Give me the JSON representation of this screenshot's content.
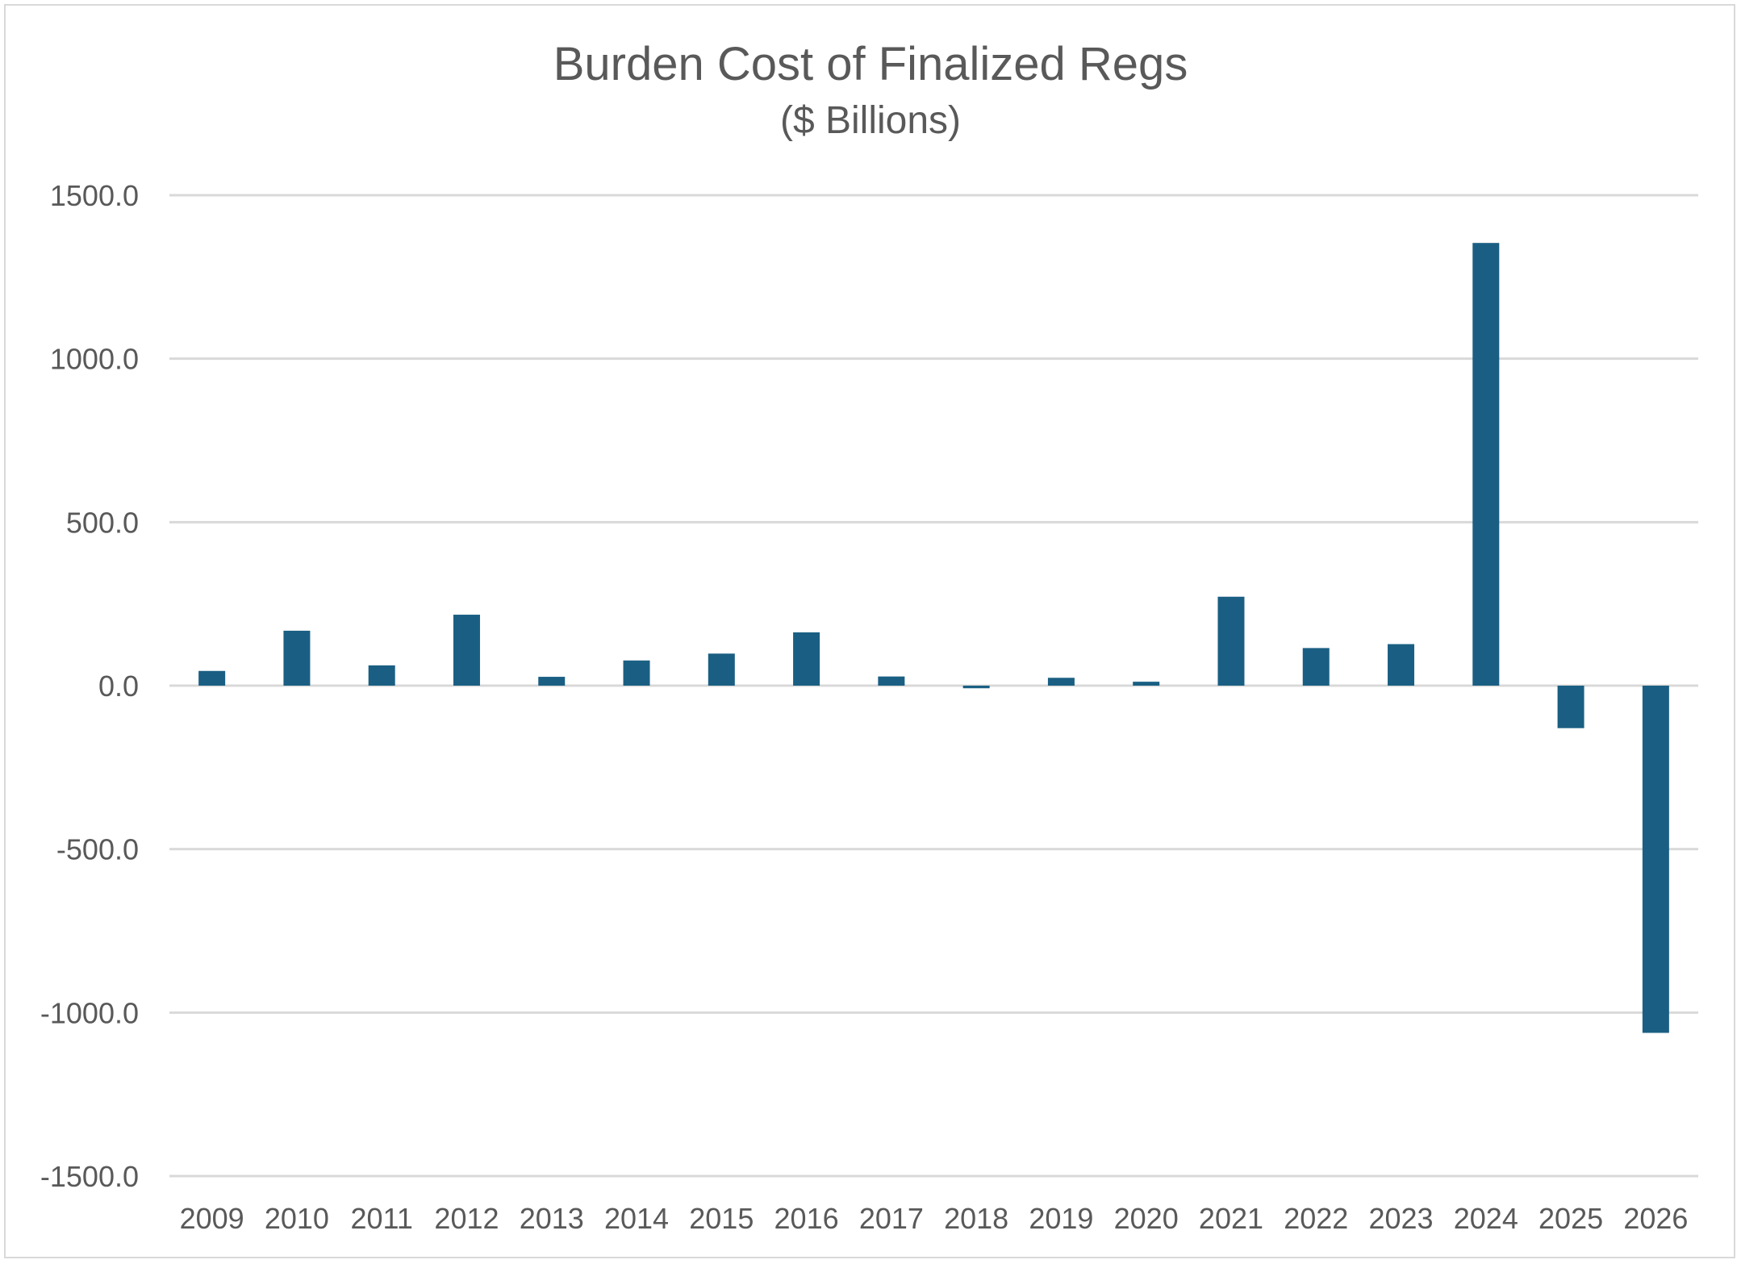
{
  "chart_data": {
    "type": "bar",
    "title": "Burden Cost of Finalized Regs",
    "subtitle": "($ Billions)",
    "xlabel": "",
    "ylabel": "",
    "categories": [
      "2009",
      "2010",
      "2011",
      "2012",
      "2013",
      "2014",
      "2015",
      "2016",
      "2017",
      "2018",
      "2019",
      "2020",
      "2021",
      "2022",
      "2023",
      "2024",
      "2025",
      "2026"
    ],
    "values": [
      45,
      168,
      62,
      217,
      27,
      77,
      98,
      163,
      28,
      -8,
      24,
      12,
      272,
      115,
      127,
      1354,
      -130,
      -1062
    ],
    "ylim": [
      -1500,
      1500
    ],
    "yticks": [
      1500,
      1000,
      500,
      0,
      -500,
      -1000,
      -1500
    ],
    "ytick_labels": [
      "1500.0",
      "1000.0",
      "500.0",
      "0.0",
      "-500.0",
      "-1000.0",
      "-1500.0"
    ],
    "grid": true,
    "legend": "none",
    "colors": {
      "bar": "#1a5f83",
      "grid": "#d9d9d9",
      "text": "#595959"
    }
  }
}
